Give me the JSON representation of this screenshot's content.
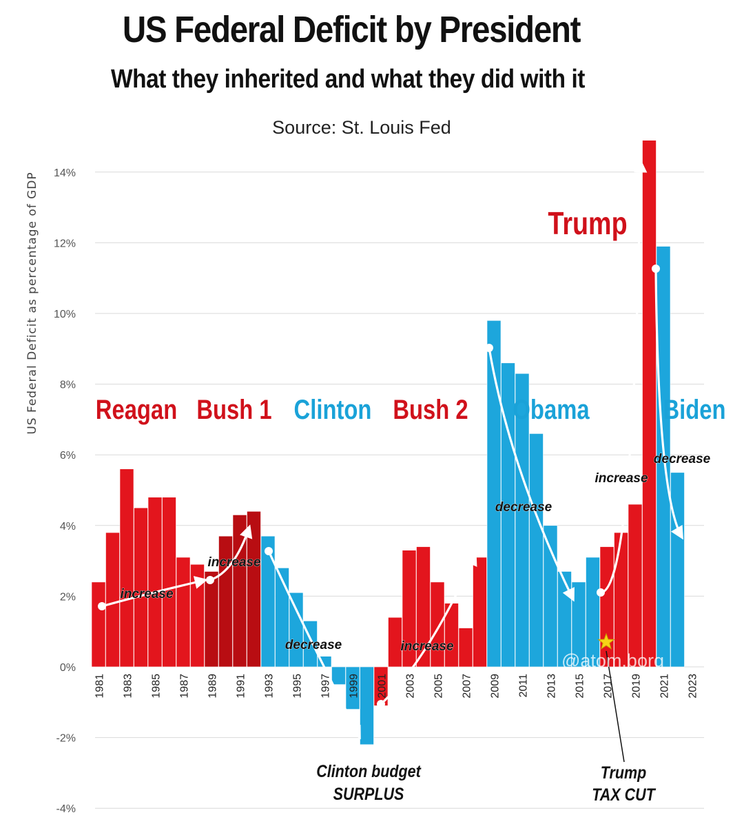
{
  "title": "US Federal Deficit by President",
  "subtitle": "What they inherited and what they did with it",
  "source": "Source: St. Louis Fed",
  "watermark": "@atom.borg",
  "colors": {
    "republican": "#e3151d",
    "republican_dark": "#b80d12",
    "democrat": "#1da6dc",
    "grid": "#d9d9d9",
    "label_red": "#d0111b",
    "label_blue": "#1aa2d8"
  },
  "chart_data": {
    "type": "bar",
    "ylabel": "US Federal Deficit as percentage of GDP",
    "ylim": [
      -4,
      15
    ],
    "yticks": [
      14,
      12,
      10,
      8,
      6,
      4,
      2,
      0,
      -2,
      -4
    ],
    "ytick_labels": [
      "14%",
      "12%",
      "10%",
      "8%",
      "6%",
      "4%",
      "2%",
      "0%",
      "-2%",
      "-4%"
    ],
    "grid": true,
    "x": [
      1981,
      1982,
      1983,
      1984,
      1985,
      1986,
      1987,
      1988,
      1989,
      1990,
      1991,
      1992,
      1993,
      1994,
      1995,
      1996,
      1997,
      1998,
      1999,
      2000,
      2001,
      2002,
      2003,
      2004,
      2005,
      2006,
      2007,
      2008,
      2009,
      2010,
      2011,
      2012,
      2013,
      2014,
      2015,
      2016,
      2017,
      2018,
      2019,
      2020,
      2021,
      2022
    ],
    "values": [
      2.4,
      3.8,
      5.6,
      4.5,
      4.8,
      4.8,
      3.1,
      2.9,
      2.7,
      3.7,
      4.3,
      4.4,
      3.7,
      2.8,
      2.1,
      1.3,
      0.3,
      -0.5,
      -1.2,
      -2.2,
      -1.1,
      1.4,
      3.3,
      3.4,
      2.4,
      1.8,
      1.1,
      3.1,
      9.8,
      8.6,
      8.3,
      6.6,
      4.0,
      2.7,
      2.4,
      3.1,
      3.4,
      3.8,
      4.6,
      14.9,
      11.9,
      5.5
    ],
    "party": [
      "R",
      "R",
      "R",
      "R",
      "R",
      "R",
      "R",
      "R",
      "R",
      "R",
      "R",
      "R",
      "D",
      "D",
      "D",
      "D",
      "D",
      "D",
      "D",
      "D",
      "R",
      "R",
      "R",
      "R",
      "R",
      "R",
      "R",
      "R",
      "D",
      "D",
      "D",
      "D",
      "D",
      "D",
      "D",
      "D",
      "R",
      "R",
      "R",
      "R",
      "D",
      "D"
    ],
    "x_tick_labels": [
      "1981",
      "1983",
      "1985",
      "1987",
      "1989",
      "1991",
      "1993",
      "1995",
      "1997",
      "1999",
      "2001",
      "2003",
      "2005",
      "2007",
      "2009",
      "2011",
      "2013",
      "2015",
      "2017",
      "2019",
      "2021",
      "2023"
    ],
    "presidents": [
      {
        "name": "Reagan",
        "party": "R"
      },
      {
        "name": "Bush 1",
        "party": "R"
      },
      {
        "name": "Clinton",
        "party": "D"
      },
      {
        "name": "Bush 2",
        "party": "R"
      },
      {
        "name": "Obama",
        "party": "D"
      },
      {
        "name": "Trump",
        "party": "R"
      },
      {
        "name": "Biden",
        "party": "D"
      }
    ],
    "trend_notes": [
      "increase",
      "increase",
      "decrease",
      "increase",
      "decrease",
      "increase",
      "decrease"
    ],
    "callouts": [
      "Clinton budget",
      "SURPLUS",
      "Trump",
      "TAX CUT"
    ]
  }
}
